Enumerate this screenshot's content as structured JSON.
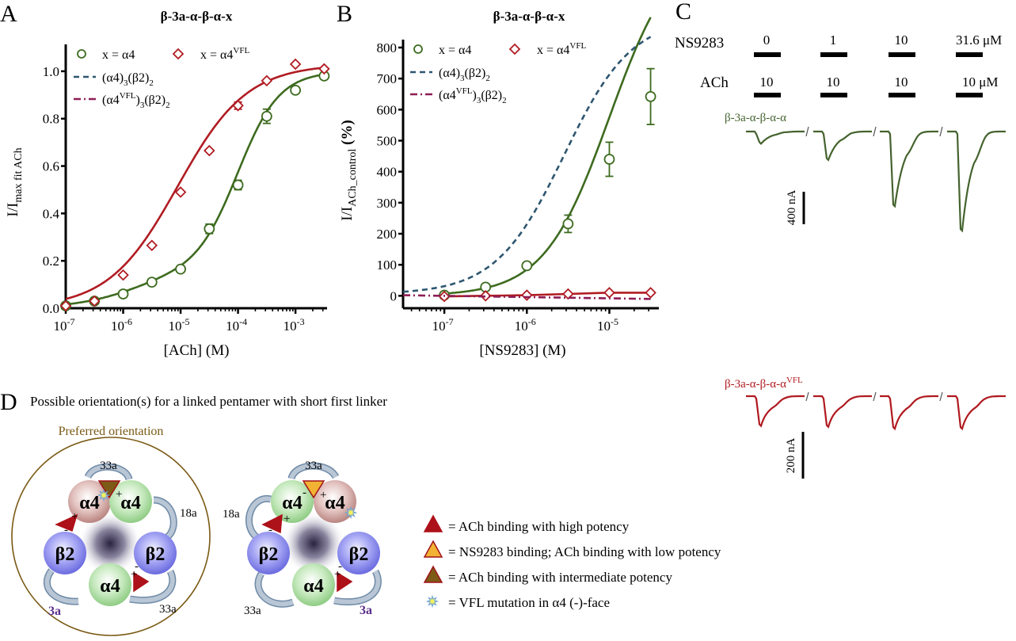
{
  "panel_labels": {
    "a": "A",
    "b": "B",
    "c": "C",
    "d": "D"
  },
  "colors": {
    "green": "#3d6b1f",
    "red": "#b01c22",
    "blue_dash": "#2e5670",
    "magenta_dashdot": "#8e1d55",
    "trace_green": "#44632e",
    "trace_red": "#b0191f",
    "brown": "#7a5a14",
    "purple": "#5a2d8a"
  },
  "chart_data": [
    {
      "id": "A",
      "type": "line",
      "title": "β-3a-α-β-α-x",
      "xlabel": "[ACh] (M)",
      "ylabel_main": "I/I",
      "ylabel_sub": "max fit ACh",
      "xscale": "log",
      "xlim_log10": [
        -7,
        -2.45
      ],
      "ylim": [
        0,
        1.08
      ],
      "x_ticks": [
        {
          "exp": -7,
          "label": "10",
          "sup": "-7"
        },
        {
          "exp": -6,
          "label": "10",
          "sup": "-6"
        },
        {
          "exp": -5,
          "label": "10",
          "sup": "-5"
        },
        {
          "exp": -4,
          "label": "10",
          "sup": "-4"
        },
        {
          "exp": -3,
          "label": "10",
          "sup": "-3"
        }
      ],
      "y_ticks": [
        0,
        0.2,
        0.4,
        0.6,
        0.8,
        1.0
      ],
      "y_tick_labels": [
        "0.0",
        "0.2",
        "0.4",
        "0.6",
        "0.8",
        "1.0"
      ],
      "legend": {
        "position": "top-left",
        "entries": [
          {
            "key": "a4",
            "text": "x = α4",
            "sup": "",
            "marker": "circle"
          },
          {
            "key": "vfl",
            "text": "x = α4",
            "sup": "VFL",
            "marker": "diamond"
          },
          {
            "key": "wt",
            "text": "(α4)",
            "sub1": "3",
            "mid": "(β2)",
            "sub2": "2",
            "style": "dash"
          },
          {
            "key": "wtvfl",
            "text": "(α4",
            "sup": "VFL",
            "close": ")",
            "sub1": "3",
            "mid": "(β2)",
            "sub2": "2",
            "style": "dashdot"
          }
        ]
      },
      "series": [
        {
          "name": "x = α4",
          "marker": "circle",
          "color": "green",
          "x_log10": [
            -7,
            -6.5,
            -6,
            -5.5,
            -5,
            -4.5,
            -4,
            -3.5,
            -3,
            -2.5
          ],
          "y": [
            0.01,
            0.03,
            0.06,
            0.11,
            0.165,
            0.335,
            0.52,
            0.81,
            0.92,
            0.98
          ],
          "err": [
            0,
            0,
            0,
            0,
            0,
            0.02,
            0.02,
            0.03,
            0,
            0
          ],
          "fit": {
            "type": "biphasic",
            "f1": 0.16,
            "ec1_log10": -5.8,
            "n1": 0.8,
            "ec2_log10": -4.0,
            "n2": 1.2,
            "top": 1.0
          }
        },
        {
          "name": "x = α4VFL",
          "marker": "diamond",
          "color": "red",
          "x_log10": [
            -7,
            -6.5,
            -6,
            -5.5,
            -5,
            -4.5,
            -4,
            -3.5,
            -3,
            -2.5
          ],
          "y": [
            0.01,
            0.03,
            0.14,
            0.265,
            0.49,
            0.665,
            0.855,
            0.96,
            1.03,
            1.01
          ],
          "err": [
            0,
            0,
            0,
            0,
            0,
            0,
            0.015,
            0,
            0,
            0
          ],
          "fit": {
            "type": "hill",
            "ec_log10": -5.05,
            "n": 0.72,
            "top": 1.03
          }
        },
        {
          "name": "(α4)3(β2)2",
          "style": "dash",
          "color": "blue_dash",
          "fit": {
            "type": "biphasic",
            "f1": 0.13,
            "ec1_log10": -5.6,
            "n1": 0.9,
            "ec2_log10": -3.95,
            "n2": 1.25,
            "top": 1.0
          }
        },
        {
          "name": "(α4VFL)3(β2)2",
          "style": "dashdot",
          "color": "magenta_dashdot",
          "fit": {
            "type": "hill",
            "ec_log10": -4.8,
            "n": 0.85,
            "top": 1.03
          }
        }
      ]
    },
    {
      "id": "B",
      "type": "line",
      "title": "β-3a-α-β-α-x",
      "xlabel": "[NS9283] (M)",
      "ylabel_main": "I/I",
      "ylabel_sub": "ACh_control",
      "ylabel_tail": " (%)",
      "xscale": "log",
      "xlim_log10": [
        -7.5,
        -4.4
      ],
      "ylim": [
        -40,
        800
      ],
      "x_ticks": [
        {
          "exp": -7,
          "label": "10",
          "sup": "-7"
        },
        {
          "exp": -6,
          "label": "10",
          "sup": "-6"
        },
        {
          "exp": -5,
          "label": "10",
          "sup": "-5"
        }
      ],
      "y_ticks": [
        0,
        100,
        200,
        300,
        400,
        500,
        600,
        700,
        800
      ],
      "y_tick_labels": [
        "0",
        "100",
        "200",
        "300",
        "400",
        "500",
        "600",
        "700",
        "800"
      ],
      "series": [
        {
          "name": "x = α4",
          "marker": "circle",
          "color": "green",
          "x_log10": [
            -7,
            -6.5,
            -6,
            -5.5,
            -5,
            -4.5
          ],
          "y": [
            2,
            28,
            97,
            232,
            440,
            642
          ],
          "err": [
            0,
            0,
            0,
            28,
            55,
            90
          ],
          "fit": {
            "type": "hill",
            "ec_log10": -5.0,
            "n": 1.1,
            "top": 1150,
            "bottom": 0
          }
        },
        {
          "name": "x = α4VFL",
          "marker": "diamond",
          "color": "red",
          "x_log10": [
            -7,
            -6.5,
            -6,
            -5.5,
            -5,
            -4.5
          ],
          "y": [
            -2,
            0,
            2,
            6,
            10,
            10
          ],
          "err": [
            0,
            0,
            0,
            0,
            0,
            0
          ],
          "fit": {
            "type": "linear"
          }
        },
        {
          "name": "(α4)3(β2)2",
          "style": "dash",
          "color": "blue_dash",
          "fit": {
            "type": "hill",
            "ec_log10": -5.55,
            "n": 1.05,
            "top": 900,
            "bottom": 5
          }
        },
        {
          "name": "(α4VFL)3(β2)2",
          "style": "dashdot",
          "color": "magenta_dashdot",
          "fit": {
            "type": "line2",
            "y0": 2,
            "y1": -10
          }
        }
      ]
    }
  ],
  "panel_c": {
    "ns_label": "NS9283",
    "ach_label": "ACh",
    "ns_values": [
      "0",
      "1",
      "10",
      "31.6 μM"
    ],
    "ach_values": [
      "10",
      "10",
      "10",
      "10 μM"
    ],
    "trace1_label": "β-3a-α-β-α-α",
    "trace2_label": "β-3a-α-β-α-α",
    "trace2_sup": "VFL",
    "scale1": "400 nA",
    "scale2": "200 nA",
    "trace1_peaks_nA": [
      150,
      350,
      920,
      1220
    ],
    "trace2_peaks_nA": [
      155,
      160,
      170,
      170
    ]
  },
  "panel_d": {
    "title": "Possible orientation(s) for a linked pentamer with short first linker",
    "preferred_label": "Preferred orientation",
    "left": {
      "subunits": [
        "α4",
        "α4",
        "β2",
        "α4",
        "β2"
      ],
      "linkers": [
        "33a",
        "18a",
        "33a",
        "3a"
      ]
    },
    "right": {
      "subunits": [
        "α4",
        "α4",
        "β2",
        "α4",
        "β2"
      ],
      "linkers": [
        "33a",
        "18a",
        "33a",
        "3a"
      ]
    },
    "legend": [
      {
        "icon": "triangle-red",
        "text": "= ACh binding with high potency"
      },
      {
        "icon": "triangle-orange",
        "text": "= NS9283 binding; ACh binding with low potency"
      },
      {
        "icon": "triangle-brown",
        "text": "= ACh binding with intermediate potency"
      },
      {
        "icon": "star-yellow",
        "text": "= VFL mutation in α4 (-)-face"
      }
    ]
  }
}
